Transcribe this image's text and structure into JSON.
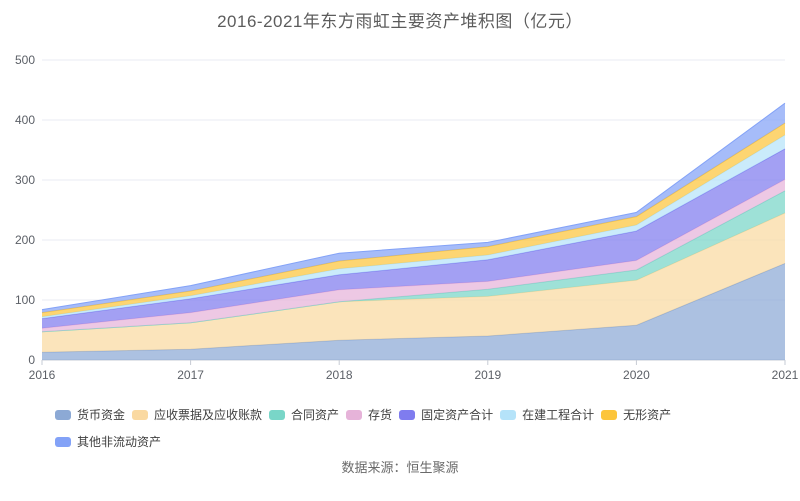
{
  "title": "2016-2021年东方雨虹主要资产堆积图（亿元）",
  "footer": "数据来源：恒生聚源",
  "colors": {
    "grid": "#e9ebf3",
    "axis_line": "#c6cbd4",
    "axis_text": "#5b5f66",
    "title_text": "#5c5c5c",
    "legend_text": "#3f3f3f",
    "footer_text": "#6a6a6a",
    "background": "#ffffff"
  },
  "chart_data": {
    "type": "area",
    "stacked": true,
    "title": "2016-2021年东方雨虹主要资产堆积图（亿元）",
    "xlabel": "",
    "ylabel": "",
    "x": [
      "2016",
      "2017",
      "2018",
      "2019",
      "2020",
      "2021"
    ],
    "ylim": [
      0,
      500
    ],
    "yticks": [
      0,
      100,
      200,
      300,
      400,
      500
    ],
    "grid": true,
    "legend_position": "bottom",
    "fill_opacity": 0.72,
    "series": [
      {
        "name": "货币资金",
        "color": "#8ca9d5",
        "values": [
          13,
          18,
          33,
          40,
          58,
          161
        ]
      },
      {
        "name": "应收票据及应收账款",
        "color": "#fad9a1",
        "values": [
          34,
          44,
          64,
          66,
          75,
          84
        ]
      },
      {
        "name": "合同资产",
        "color": "#79d6c8",
        "values": [
          0,
          0,
          0,
          12,
          17,
          37
        ]
      },
      {
        "name": "存货",
        "color": "#e6b3d9",
        "values": [
          6,
          17,
          20,
          13,
          16,
          19
        ]
      },
      {
        "name": "固定资产合计",
        "color": "#7f7cef",
        "values": [
          16,
          23,
          25,
          36,
          49,
          51
        ]
      },
      {
        "name": "在建工程合计",
        "color": "#b5e3f9",
        "values": [
          3,
          5,
          10,
          8,
          10,
          23
        ]
      },
      {
        "name": "无形资产",
        "color": "#fcc53b",
        "values": [
          7,
          8,
          13,
          14,
          14,
          20
        ]
      },
      {
        "name": "其他非流动资产",
        "color": "#83a2f7",
        "values": [
          5,
          9,
          13,
          7,
          7,
          33
        ]
      }
    ],
    "totals": [
      84,
      124,
      178,
      196,
      246,
      428
    ]
  }
}
